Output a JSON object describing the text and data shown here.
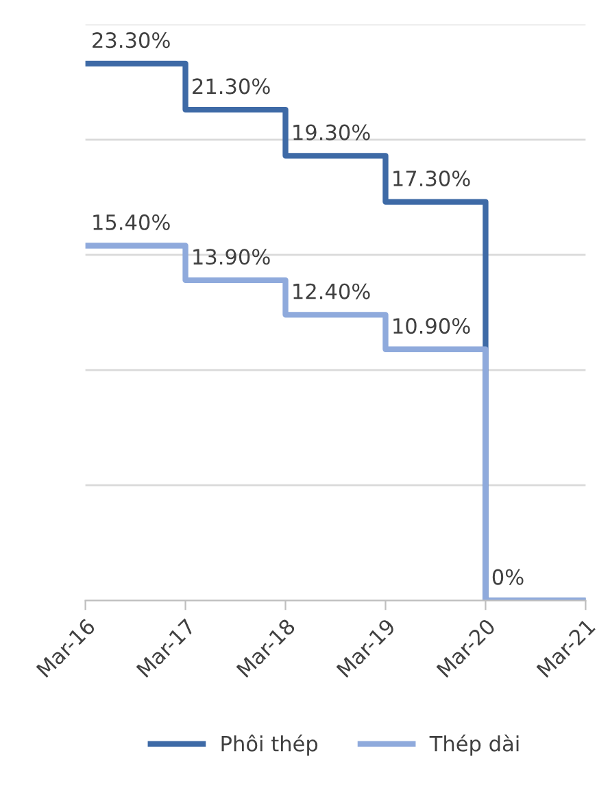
{
  "chart_data": {
    "type": "step",
    "categories": [
      "Mar-16",
      "Mar-17",
      "Mar-18",
      "Mar-19",
      "Mar-20",
      "Mar-21"
    ],
    "series": [
      {
        "name": "Phôi thép",
        "color": "#3e6aa6",
        "values": [
          23.3,
          21.3,
          19.3,
          17.3,
          0,
          0
        ],
        "value_labels": [
          "23.30%",
          "21.30%",
          "19.30%",
          "17.30%",
          null,
          null
        ]
      },
      {
        "name": "Thép dài",
        "color": "#8faadc",
        "values": [
          15.4,
          13.9,
          12.4,
          10.9,
          0,
          0
        ],
        "value_labels": [
          "15.40%",
          "13.90%",
          "12.40%",
          "10.90%",
          "0%",
          null
        ]
      }
    ],
    "ylim": [
      0,
      25
    ],
    "yticks": [
      {
        "value": 0,
        "label": null
      },
      {
        "value": 5,
        "label": null
      },
      {
        "value": 10,
        "label": null
      },
      {
        "value": 15,
        "label": null
      },
      {
        "value": 20,
        "label": null
      },
      {
        "value": 25,
        "label": null
      }
    ],
    "tick_labels": "x",
    "grid": "y",
    "legend": "bottom",
    "line_style": "solid",
    "marker": "none"
  }
}
